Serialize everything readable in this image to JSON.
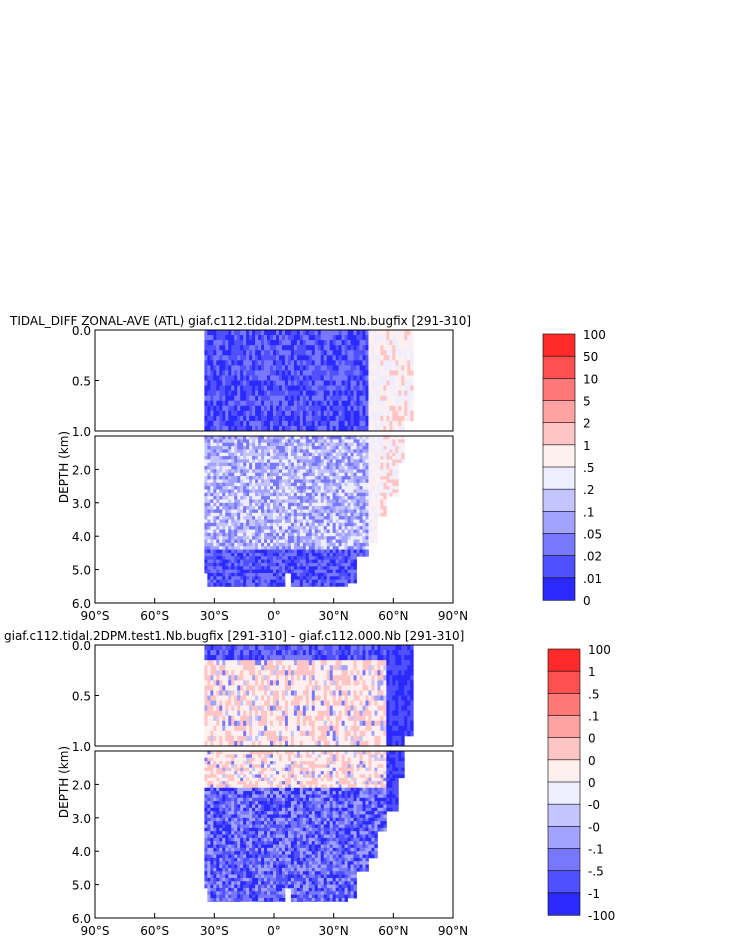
{
  "chart_data": [
    {
      "type": "heatmap",
      "title": "TIDAL_DIFF ZONAL-AVE (ATL) giaf.c112.tidal.2DPM.test1.Nb.bugfix [291-310]",
      "ylabel": "DEPTH (km)",
      "xlabel": "",
      "x_ticks": [
        "90°S",
        "60°S",
        "30°S",
        "0°",
        "30°N",
        "60°N",
        "90°N"
      ],
      "y_ticks_upper": [
        "0.0",
        "0.5",
        "1.0"
      ],
      "y_ticks_lower": [
        "2.0",
        "3.0",
        "4.0",
        "5.0",
        "6.0"
      ],
      "xlim": [
        -90,
        90
      ],
      "ylim_upper": [
        0,
        1
      ],
      "ylim_lower": [
        1,
        6
      ],
      "legend_labels": [
        "100",
        "50",
        "10",
        "5",
        "2",
        "1",
        ".5",
        ".2",
        ".1",
        ".05",
        ".02",
        ".01",
        "0"
      ],
      "colors": [
        "#ff2a2a",
        "#ff5050",
        "#ff7878",
        "#ffa2a2",
        "#ffc4c4",
        "#fff0f0",
        "#eeeeff",
        "#c4c4ff",
        "#a2a2ff",
        "#7878ff",
        "#5050ff",
        "#2a2aff"
      ],
      "lat_extent": [
        -35,
        70
      ]
    },
    {
      "type": "heatmap",
      "title": "giaf.c112.tidal.2DPM.test1.Nb.bugfix [291-310] - giaf.c112.000.Nb [291-310]",
      "ylabel": "DEPTH (km)",
      "xlabel": "",
      "x_ticks": [
        "90°S",
        "60°S",
        "30°S",
        "0°",
        "30°N",
        "60°N",
        "90°N"
      ],
      "y_ticks_upper": [
        "0.0",
        "0.5",
        "1.0"
      ],
      "y_ticks_lower": [
        "2.0",
        "3.0",
        "4.0",
        "5.0",
        "6.0"
      ],
      "xlim": [
        -90,
        90
      ],
      "ylim_upper": [
        0,
        1
      ],
      "ylim_lower": [
        1,
        6
      ],
      "legend_labels": [
        "100",
        "1",
        ".5",
        ".1",
        "0",
        "0",
        "0",
        "-0",
        "-0",
        "-.1",
        "-.5",
        "-1",
        "-100"
      ],
      "colors": [
        "#ff2a2a",
        "#ff5050",
        "#ff7878",
        "#ffa2a2",
        "#ffc4c4",
        "#fff0f0",
        "#eeeeff",
        "#c4c4ff",
        "#a2a2ff",
        "#7878ff",
        "#5050ff",
        "#2a2aff"
      ],
      "lat_extent": [
        -35,
        70
      ]
    }
  ]
}
